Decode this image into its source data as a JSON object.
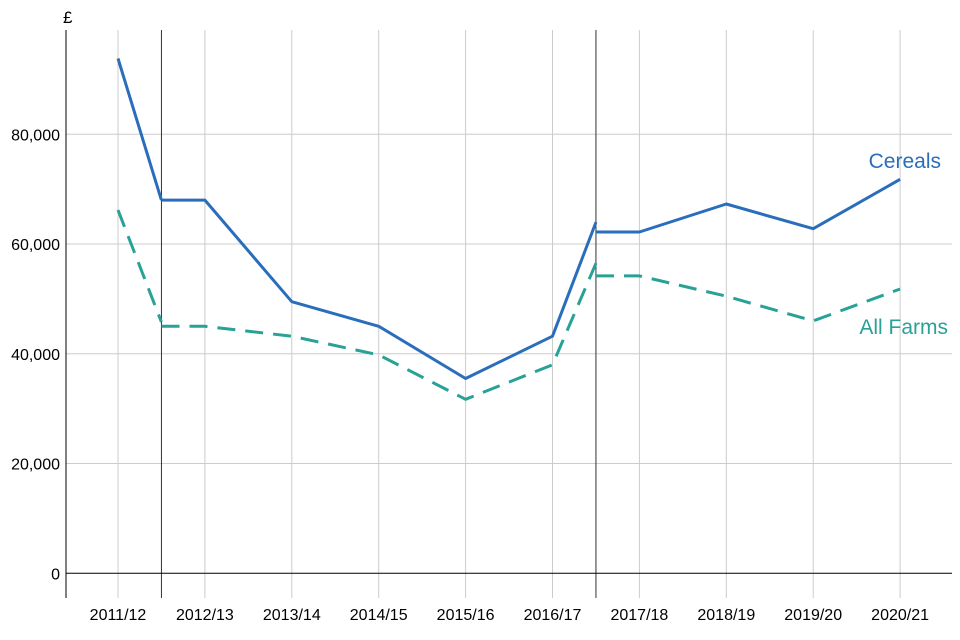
{
  "chart_data": {
    "type": "line",
    "y_unit": "£",
    "categories": [
      "2011/12",
      "2012/13",
      "2013/14",
      "2014/15",
      "2015/16",
      "2016/17",
      "2017/18",
      "2018/19",
      "2019/20",
      "2020/21"
    ],
    "y_ticks": [
      0,
      20000,
      40000,
      60000,
      80000
    ],
    "y_tick_labels": [
      "0",
      "20,000",
      "40,000",
      "60,000",
      "80,000"
    ],
    "ylim": [
      -4500,
      99000
    ],
    "grid": true,
    "series_breaks_after": [
      "2011/12",
      "2016/17"
    ],
    "series": [
      {
        "name": "Cereals",
        "color": "#2a6ebb",
        "style": "solid",
        "values": [
          93800,
          68000,
          49500,
          45000,
          35500,
          43200,
          62200,
          67300,
          62800,
          71800
        ],
        "values_before_break": [
          68000,
          64000
        ]
      },
      {
        "name": "All Farms",
        "color": "#28a197",
        "style": "dashed",
        "values": [
          66200,
          45000,
          43200,
          39800,
          31700,
          38000,
          54200,
          50500,
          46000,
          51800
        ],
        "values_before_break": [
          45800,
          56500
        ]
      }
    ]
  }
}
